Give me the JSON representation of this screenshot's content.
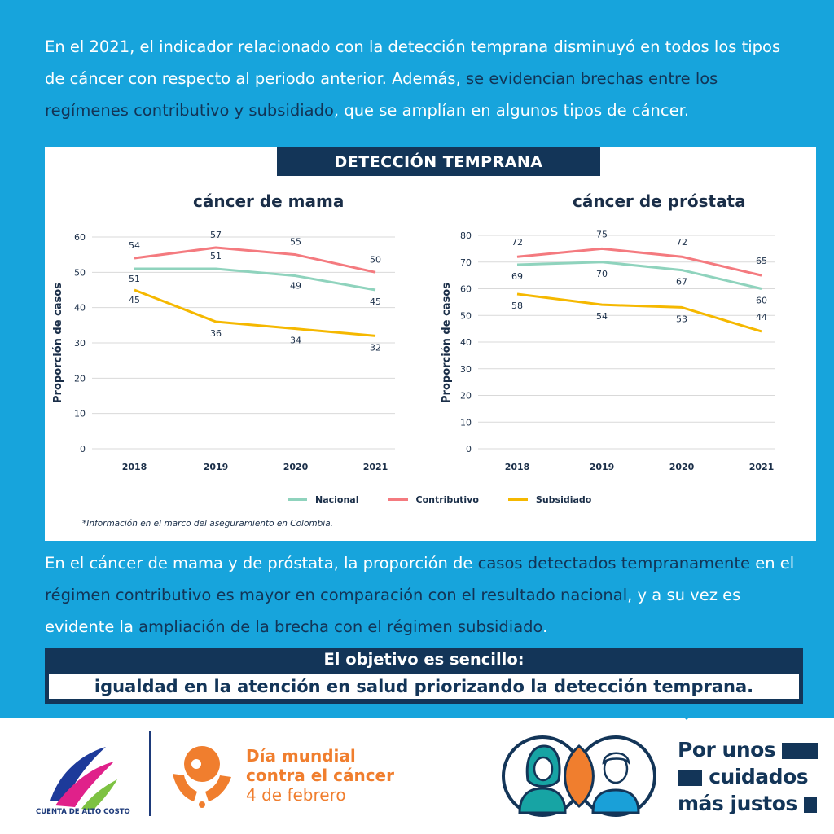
{
  "intro": {
    "part1": "En el 2021, el indicador relacionado con la detección temprana disminuyó en todos los tipos de cáncer con respecto al periodo anterior. Además, ",
    "highlight": "se evidencian brechas entre los regímenes contributivo y subsidiado",
    "part2": ", que se amplían en algunos tipos de cáncer."
  },
  "banner": "DETECCIÓN TEMPRANA",
  "legend": [
    {
      "label": "Nacional",
      "color": "#8fd3bd"
    },
    {
      "label": "Contributivo",
      "color": "#f47a7f"
    },
    {
      "label": "Subsidiado",
      "color": "#f5b800"
    }
  ],
  "footnote": "*Información en el marco del aseguramiento en Colombia.",
  "chart_data": [
    {
      "type": "line",
      "title": "cáncer de mama",
      "ylabel": "Proporción de casos",
      "xlabel": "",
      "categories": [
        "2018",
        "2019",
        "2020",
        "2021"
      ],
      "ylim": [
        0,
        60
      ],
      "yticks": [
        "0",
        "10",
        "20",
        "30",
        "40",
        "50",
        "60"
      ],
      "grid": true,
      "series": [
        {
          "name": "Nacional",
          "values": [
            51,
            51,
            49,
            45
          ],
          "color": "#8fd3bd"
        },
        {
          "name": "Contributivo",
          "values": [
            54,
            57,
            55,
            50
          ],
          "color": "#f47a7f"
        },
        {
          "name": "Subsidiado",
          "values": [
            45,
            36,
            34,
            32
          ],
          "color": "#f5b800"
        }
      ]
    },
    {
      "type": "line",
      "title": "cáncer de próstata",
      "ylabel": "Proporción de casos",
      "xlabel": "",
      "categories": [
        "2018",
        "2019",
        "2020",
        "2021"
      ],
      "ylim": [
        0,
        80
      ],
      "yticks": [
        "0",
        "10",
        "20",
        "30",
        "40",
        "50",
        "60",
        "70",
        "80"
      ],
      "grid": true,
      "series": [
        {
          "name": "Nacional",
          "values": [
            69,
            70,
            67,
            60
          ],
          "color": "#8fd3bd"
        },
        {
          "name": "Contributivo",
          "values": [
            72,
            75,
            72,
            65
          ],
          "color": "#f47a7f"
        },
        {
          "name": "Subsidiado",
          "values": [
            58,
            54,
            53,
            44
          ],
          "color": "#f5b800"
        }
      ]
    }
  ],
  "outro": {
    "part1": "En el cáncer de mama y de próstata, la proporción de ",
    "hl1": "casos detectados tempranamente",
    "part2": " en el ",
    "hl2": "régimen contributivo es mayor en comparación con el resultado nacional",
    "part3": ", y a su vez es evidente la ",
    "hl3": "ampliación de la brecha con el régimen subsidiado",
    "part4": "."
  },
  "goal": {
    "title": "El objetivo es sencillo:",
    "text": "igualdad en la atención en salud priorizando la detección temprana."
  },
  "footer": {
    "cac_name": "CUENTA DE ALTO COSTO",
    "day_line1": "Día mundial",
    "day_line2": "contra el cáncer",
    "day_date": "4 de febrero",
    "slogan_line1": "Por unos",
    "slogan_line2": "cuidados",
    "slogan_line3": "más justos"
  },
  "colors": {
    "background": "#17a4dc",
    "navy": "#133558",
    "orange": "#f07e2e"
  }
}
